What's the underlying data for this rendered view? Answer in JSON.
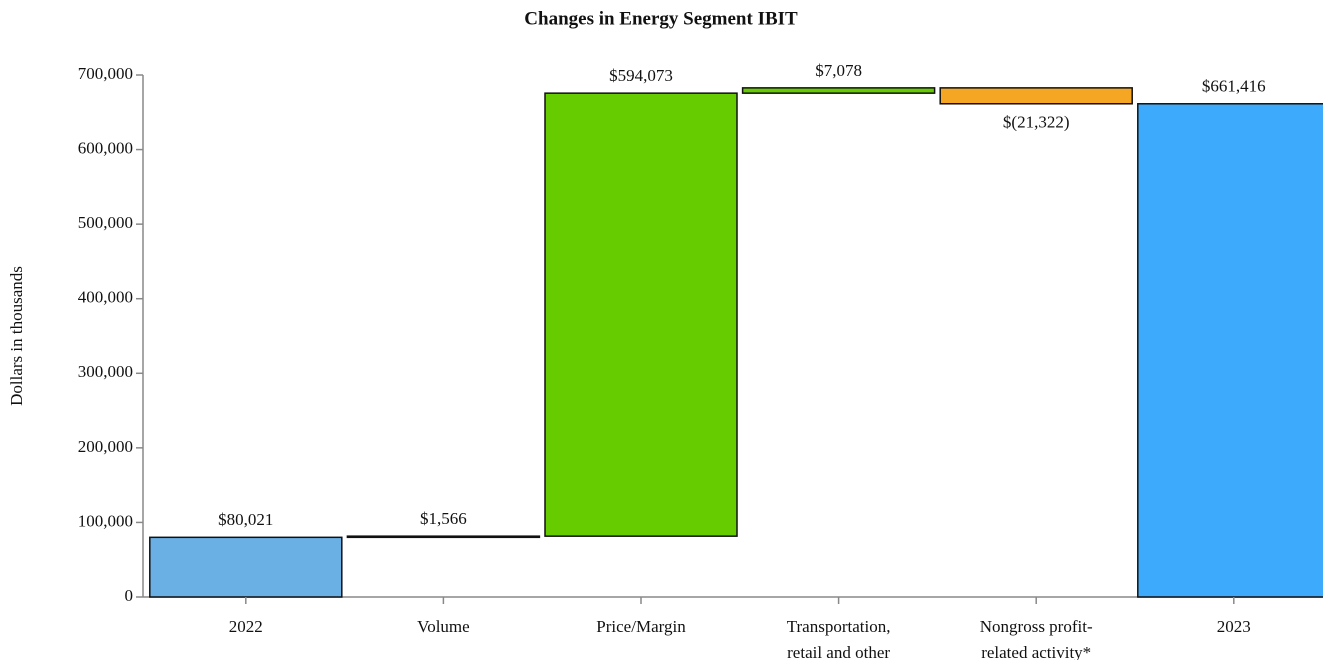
{
  "chart_data": {
    "type": "waterfall",
    "title": "Changes in Energy Segment IBIT",
    "y_label": "Dollars in thousands",
    "categories": [
      [
        "2022"
      ],
      [
        "Volume"
      ],
      [
        "Price/Margin"
      ],
      [
        "Transportation,",
        "retail and other"
      ],
      [
        "Nongross profit-",
        "related activity*"
      ],
      [
        "2023"
      ]
    ],
    "measures": [
      "absolute",
      "relative",
      "relative",
      "relative",
      "relative",
      "total"
    ],
    "values": [
      80021,
      1566,
      594073,
      7078,
      -21322,
      661416
    ],
    "value_labels": [
      "$80,021",
      "$1,566",
      "$594,073",
      "$7,078",
      "$(21,322)",
      "$661,416"
    ],
    "colors": [
      "#6ab0e4",
      "#111111",
      "#66cc00",
      "#66cc00",
      "#f5a623",
      "#3daafc"
    ],
    "ylim": [
      0,
      700000
    ],
    "yticks": [
      0,
      {
        "value": 100000,
        "label": "100,000"
      },
      {
        "value": 200000,
        "label": "200,000"
      },
      {
        "value": 300000,
        "label": "300,000"
      },
      {
        "value": 400000,
        "label": "400,000"
      },
      {
        "value": 500000,
        "label": "500,000"
      },
      {
        "value": 600000,
        "label": "600,000"
      },
      {
        "value": 700000,
        "label": "700,000"
      }
    ]
  }
}
